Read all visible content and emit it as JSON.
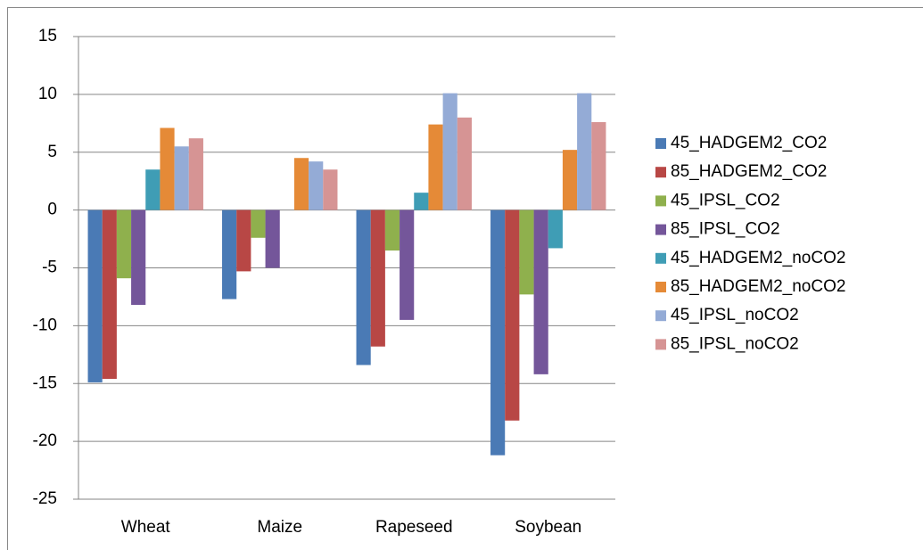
{
  "chart_data": {
    "type": "bar",
    "categories": [
      "Wheat",
      "Maize",
      "Rapeseed",
      "Soybean"
    ],
    "series": [
      {
        "name": "45_HADGEM2_CO2",
        "color": "#4a7ab5",
        "values": [
          -14.9,
          -7.7,
          -13.4,
          -21.2
        ]
      },
      {
        "name": "85_HADGEM2_CO2",
        "color": "#b84745",
        "values": [
          -14.6,
          -5.3,
          -11.8,
          -18.2
        ]
      },
      {
        "name": "45_IPSL_CO2",
        "color": "#8fb04d",
        "values": [
          -5.9,
          -2.4,
          -3.5,
          -7.3
        ]
      },
      {
        "name": "85_IPSL_CO2",
        "color": "#74569a",
        "values": [
          -8.2,
          -5.0,
          -9.5,
          -14.2
        ]
      },
      {
        "name": "45_HADGEM2_noCO2",
        "color": "#3f9db5",
        "values": [
          3.5,
          0,
          1.5,
          -3.3
        ]
      },
      {
        "name": "85_HADGEM2_noCO2",
        "color": "#e58a37",
        "values": [
          7.1,
          4.5,
          7.4,
          5.2
        ]
      },
      {
        "name": "45_IPSL_noCO2",
        "color": "#94abd6",
        "values": [
          5.5,
          4.2,
          10.1,
          10.1
        ]
      },
      {
        "name": "85_IPSL_noCO2",
        "color": "#d69494",
        "values": [
          6.2,
          3.5,
          8.0,
          7.6
        ]
      }
    ],
    "ylim": [
      -25,
      15
    ],
    "yticks": [
      -25,
      -20,
      -15,
      -10,
      -5,
      0,
      5,
      10,
      15
    ],
    "grid": true,
    "legend": "right"
  }
}
